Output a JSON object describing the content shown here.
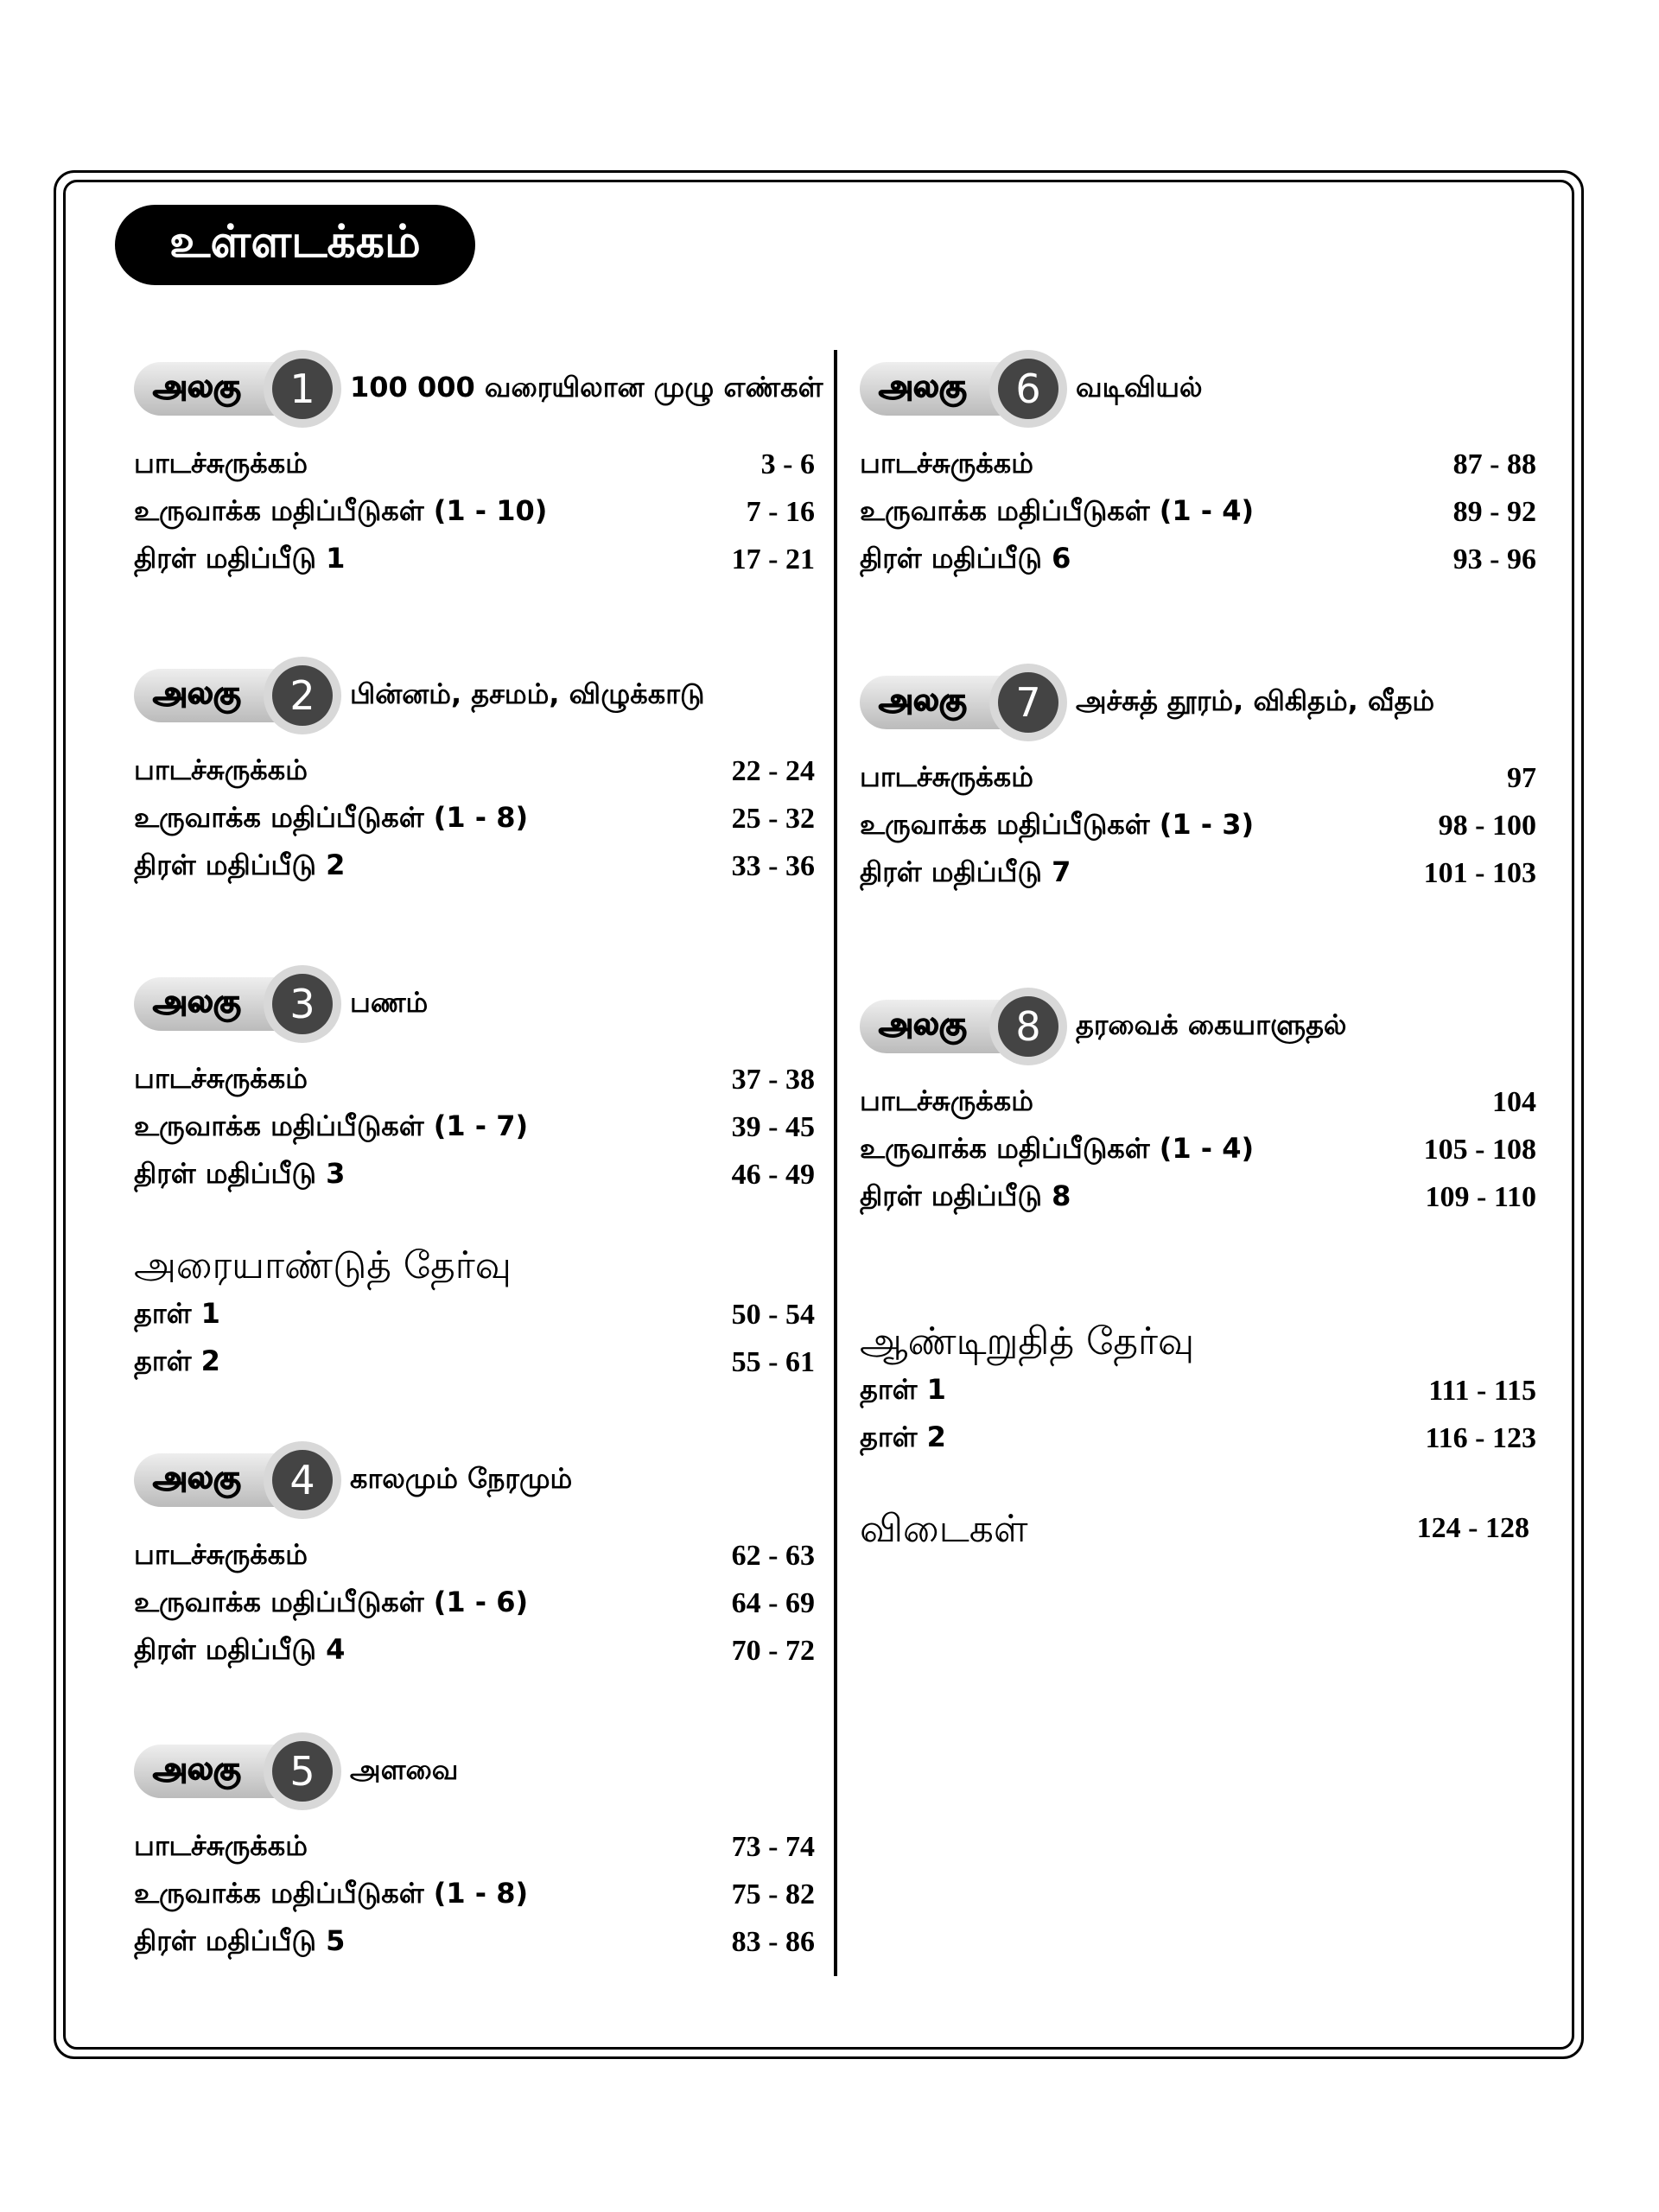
{
  "title": "உள்ளடக்கம்",
  "units": [
    {
      "label": "அலகு",
      "number": 1,
      "title": "100 000 வரையிலான முழு எண்கள்",
      "entries": [
        {
          "name": "பாடச்சுருக்கம்",
          "pages": "3 - 6"
        },
        {
          "name": "உருவாக்க மதிப்பீடுகள் (1 - 10)",
          "pages": "7 - 16"
        },
        {
          "name": "திரள் மதிப்பீடு 1",
          "pages": "17 - 21"
        }
      ]
    },
    {
      "label": "அலகு",
      "number": 2,
      "title": "பின்னம், தசமம், விழுக்காடு",
      "entries": [
        {
          "name": "பாடச்சுருக்கம்",
          "pages": "22 - 24"
        },
        {
          "name": "உருவாக்க மதிப்பீடுகள் (1 - 8)",
          "pages": "25 - 32"
        },
        {
          "name": "திரள் மதிப்பீடு 2",
          "pages": "33 - 36"
        }
      ]
    },
    {
      "label": "அலகு",
      "number": 3,
      "title": "பணம்",
      "entries": [
        {
          "name": "பாடச்சுருக்கம்",
          "pages": "37 - 38"
        },
        {
          "name": "உருவாக்க மதிப்பீடுகள் (1 - 7)",
          "pages": "39 - 45"
        },
        {
          "name": "திரள் மதிப்பீடு 3",
          "pages": "46 - 49"
        }
      ]
    },
    {
      "label": "அலகு",
      "number": 4,
      "title": "காலமும் நேரமும்",
      "entries": [
        {
          "name": "பாடச்சுருக்கம்",
          "pages": "62 - 63"
        },
        {
          "name": "உருவாக்க மதிப்பீடுகள் (1 - 6)",
          "pages": "64 - 69"
        },
        {
          "name": "திரள் மதிப்பீடு 4",
          "pages": "70 - 72"
        }
      ]
    },
    {
      "label": "அலகு",
      "number": 5,
      "title": "அளவை",
      "entries": [
        {
          "name": "பாடச்சுருக்கம்",
          "pages": "73 - 74"
        },
        {
          "name": "உருவாக்க மதிப்பீடுகள் (1 - 8)",
          "pages": "75 - 82"
        },
        {
          "name": "திரள் மதிப்பீடு 5",
          "pages": "83 - 86"
        }
      ]
    },
    {
      "label": "அலகு",
      "number": 6,
      "title": "வடிவியல்",
      "entries": [
        {
          "name": "பாடச்சுருக்கம்",
          "pages": "87 - 88"
        },
        {
          "name": "உருவாக்க மதிப்பீடுகள் (1 - 4)",
          "pages": "89 - 92"
        },
        {
          "name": "திரள் மதிப்பீடு 6",
          "pages": "93 - 96"
        }
      ]
    },
    {
      "label": "அலகு",
      "number": 7,
      "title": "அச்சுத் தூரம், விகிதம், வீதம்",
      "entries": [
        {
          "name": "பாடச்சுருக்கம்",
          "pages": "97"
        },
        {
          "name": "உருவாக்க மதிப்பீடுகள் (1 - 3)",
          "pages": "98 - 100"
        },
        {
          "name": "திரள் மதிப்பீடு 7",
          "pages": "101 - 103"
        }
      ]
    },
    {
      "label": "அலகு",
      "number": 8,
      "title": "தரவைக் கையாளுதல்",
      "entries": [
        {
          "name": "பாடச்சுருக்கம்",
          "pages": "104"
        },
        {
          "name": "உருவாக்க மதிப்பீடுகள் (1 - 4)",
          "pages": "105 - 108"
        },
        {
          "name": "திரள் மதிப்பீடு 8",
          "pages": "109 - 110"
        }
      ]
    }
  ],
  "mid_year_exam": {
    "title": "அரையாண்டுத் தேர்வு",
    "entries": [
      {
        "name": "தாள் 1",
        "pages": "50 - 54"
      },
      {
        "name": "தாள் 2",
        "pages": "55 - 61"
      }
    ]
  },
  "year_end_exam": {
    "title": "ஆண்டிறுதித் தேர்வு",
    "entries": [
      {
        "name": "தாள் 1",
        "pages": "111 - 115"
      },
      {
        "name": "தாள் 2",
        "pages": "116 - 123"
      }
    ]
  },
  "answers": {
    "title": "விடைகள்",
    "pages": "124 - 128"
  }
}
